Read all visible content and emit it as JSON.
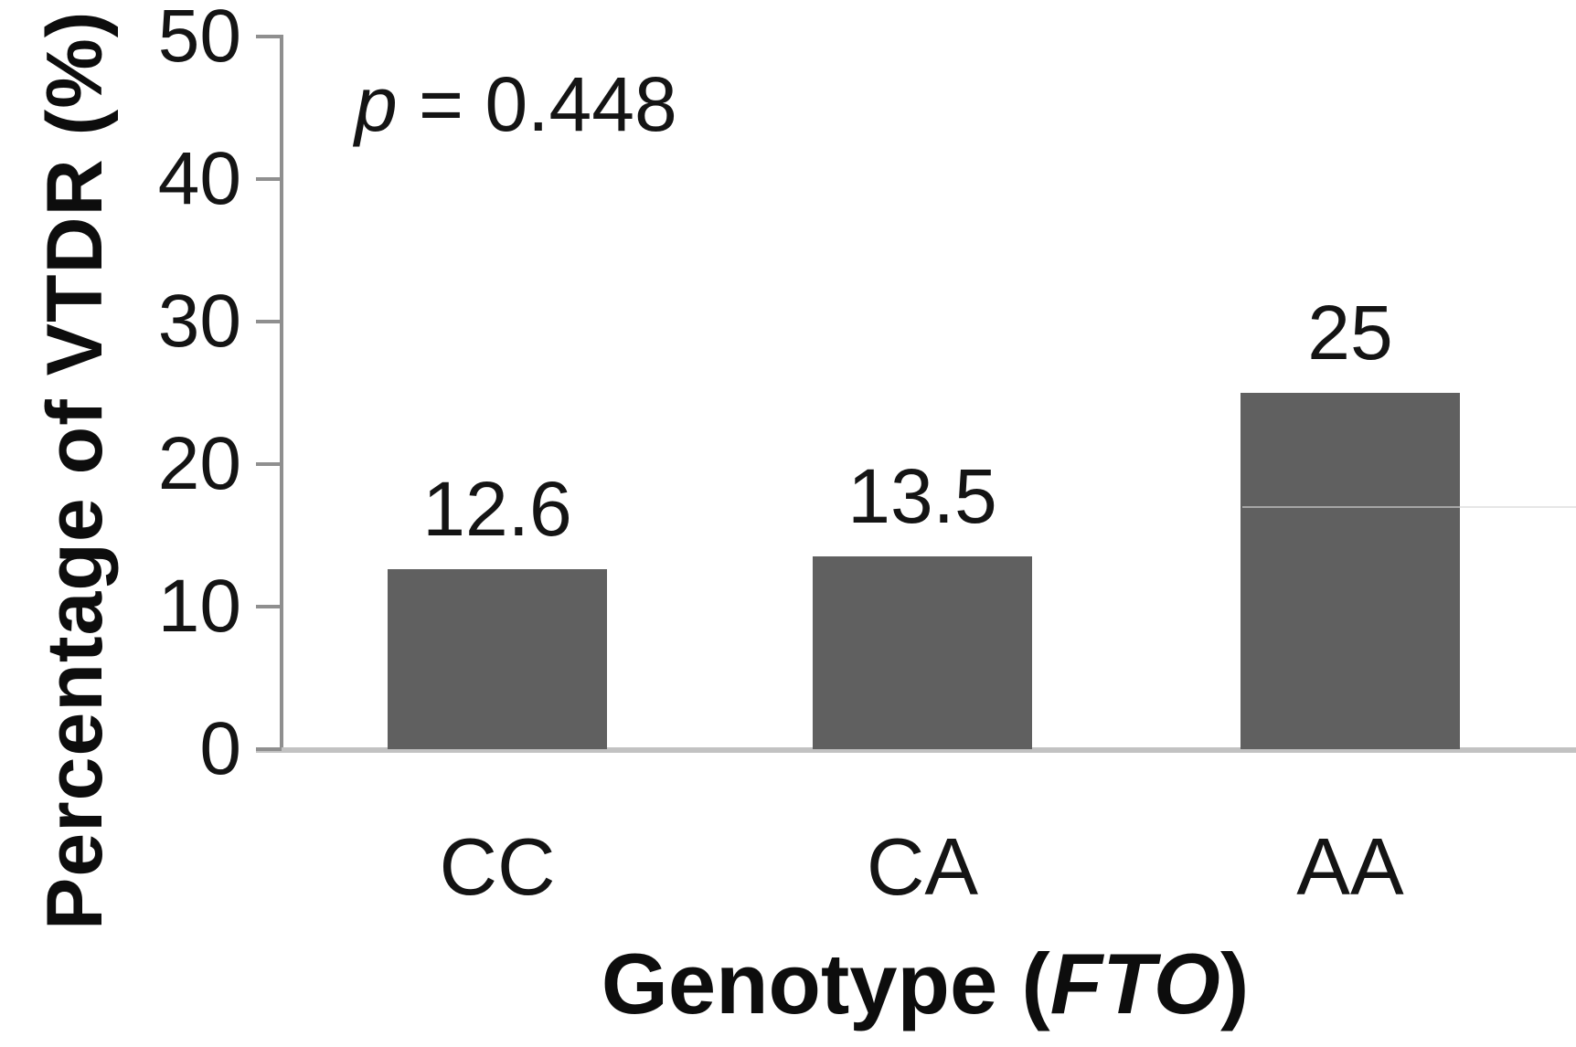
{
  "chart_data": {
    "type": "bar",
    "categories": [
      "CC",
      "CA",
      "AA"
    ],
    "values": [
      12.6,
      13.5,
      25
    ],
    "data_labels": [
      "12.6",
      "13.5",
      "25"
    ],
    "xlabel": "Genotype (FTO)",
    "xlabel_parts": {
      "prefix": "Genotype (",
      "italic": "FTO",
      "suffix": ")"
    },
    "ylabel": "Percentage of VTDR (%)",
    "ylim": [
      0,
      50
    ],
    "yticks": [
      0,
      10,
      20,
      30,
      40,
      50
    ],
    "ytick_labels": [
      "0",
      "10",
      "20",
      "30",
      "40",
      "50"
    ],
    "annotation": {
      "italic": "p",
      "rest": " = 0.448"
    },
    "bar_color": "#606060",
    "axis_color": "#8f8f8f",
    "baseline_color": "#c2c2c2",
    "text_color": "#141414",
    "grid": "off",
    "legend": "none"
  }
}
